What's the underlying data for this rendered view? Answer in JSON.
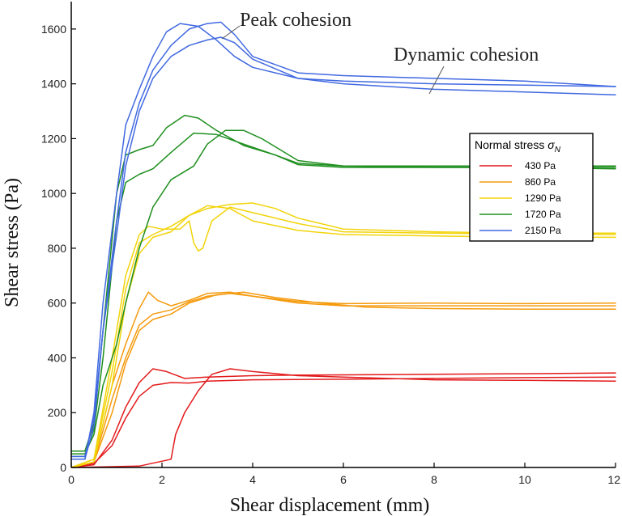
{
  "chart_data": {
    "type": "line",
    "xlabel": "Shear displacement (mm)",
    "ylabel": "Shear stress (Pa)",
    "xlim": [
      0,
      12
    ],
    "ylim": [
      0,
      1700
    ],
    "xticks": [
      "0",
      "2",
      "4",
      "6",
      "8",
      "10",
      "12"
    ],
    "yticks": [
      "0",
      "200",
      "400",
      "600",
      "800",
      "1000",
      "1200",
      "1400",
      "1600"
    ],
    "grid": false,
    "legend": {
      "title_main": "Normal stress ",
      "title_symbol": "σ",
      "title_sub": "N",
      "placement": "right",
      "entries": [
        {
          "label": "430 Pa",
          "color": "#e31a1c"
        },
        {
          "label": "860 Pa",
          "color": "#f59a0c"
        },
        {
          "label": "1290 Pa",
          "color": "#f2d40a"
        },
        {
          "label": "1720 Pa",
          "color": "#1f8f1f"
        },
        {
          "label": "2150 Pa",
          "color": "#4169e1"
        }
      ]
    },
    "annotations": [
      {
        "text": "Peak cohesion",
        "x": 3.2,
        "y": 1625
      },
      {
        "text": "Dynamic cohesion",
        "x": 7.8,
        "y": 1400
      }
    ],
    "series": [
      {
        "group": "430 Pa",
        "color": "#e31a1c",
        "x": [
          0,
          0.5,
          0.9,
          1.2,
          1.5,
          1.8,
          2.1,
          2.5,
          3,
          4,
          5,
          6,
          8,
          10,
          12
        ],
        "y": [
          0,
          10,
          100,
          220,
          310,
          360,
          350,
          325,
          330,
          335,
          337,
          338,
          340,
          342,
          345
        ]
      },
      {
        "group": "430 Pa",
        "color": "#e31a1c",
        "x": [
          0,
          0.5,
          0.9,
          1.2,
          1.5,
          1.8,
          2.2,
          2.6,
          3,
          4,
          6,
          8,
          10,
          12
        ],
        "y": [
          0,
          15,
          80,
          180,
          260,
          300,
          310,
          308,
          315,
          320,
          322,
          325,
          328,
          330
        ]
      },
      {
        "group": "430 Pa",
        "color": "#e31a1c",
        "x": [
          0,
          1.5,
          2.2,
          2.3,
          2.5,
          2.8,
          3.1,
          3.5,
          4,
          5,
          6,
          8,
          10,
          12
        ],
        "y": [
          0,
          5,
          30,
          120,
          200,
          280,
          340,
          360,
          350,
          335,
          330,
          320,
          318,
          315
        ]
      },
      {
        "group": "860 Pa",
        "color": "#f59a0c",
        "x": [
          0,
          0.5,
          0.9,
          1.2,
          1.5,
          1.7,
          1.9,
          2.2,
          2.6,
          3,
          3.5,
          4,
          5,
          6,
          8,
          10,
          12
        ],
        "y": [
          0,
          20,
          300,
          450,
          580,
          640,
          610,
          590,
          610,
          635,
          640,
          625,
          605,
          598,
          600,
          598,
          600
        ]
      },
      {
        "group": "860 Pa",
        "color": "#f59a0c",
        "x": [
          0,
          0.5,
          0.9,
          1.2,
          1.5,
          1.8,
          2.2,
          2.6,
          3,
          3.5,
          4,
          5,
          6,
          8,
          10,
          12
        ],
        "y": [
          0,
          20,
          250,
          400,
          520,
          560,
          575,
          605,
          625,
          635,
          625,
          600,
          590,
          590,
          590,
          590
        ]
      },
      {
        "group": "860 Pa",
        "color": "#f59a0c",
        "x": [
          0,
          0.5,
          0.9,
          1.2,
          1.5,
          1.8,
          2.2,
          2.6,
          3.2,
          3.8,
          4.5,
          5.5,
          6.5,
          8,
          10,
          12
        ],
        "y": [
          0,
          20,
          200,
          380,
          500,
          540,
          560,
          600,
          630,
          640,
          620,
          600,
          585,
          580,
          578,
          578
        ]
      },
      {
        "group": "1290 Pa",
        "color": "#f2d40a",
        "x": [
          0,
          0.5,
          0.9,
          1.2,
          1.5,
          1.7,
          2,
          2.4,
          2.6,
          2.7,
          2.8,
          2.9,
          3.1,
          3.5,
          4,
          5,
          6,
          8,
          10,
          12
        ],
        "y": [
          0,
          30,
          400,
          700,
          850,
          880,
          870,
          870,
          900,
          820,
          790,
          800,
          900,
          950,
          930,
          890,
          860,
          855,
          852,
          850
        ]
      },
      {
        "group": "1290 Pa",
        "color": "#f2d40a",
        "x": [
          0,
          0.5,
          0.9,
          1.2,
          1.5,
          1.8,
          2.2,
          2.6,
          3,
          3.5,
          4,
          4.5,
          5,
          6,
          8,
          10,
          12
        ],
        "y": [
          0,
          30,
          350,
          650,
          820,
          850,
          880,
          920,
          945,
          960,
          965,
          945,
          910,
          870,
          860,
          855,
          855
        ]
      },
      {
        "group": "1290 Pa",
        "color": "#f2d40a",
        "x": [
          0,
          0.5,
          0.9,
          1.2,
          1.5,
          1.8,
          2.2,
          2.6,
          3,
          3.5,
          4,
          5,
          6,
          8,
          10,
          12
        ],
        "y": [
          0,
          20,
          300,
          600,
          780,
          840,
          860,
          920,
          955,
          945,
          900,
          865,
          850,
          845,
          840,
          840
        ]
      },
      {
        "group": "1720 Pa",
        "color": "#1f8f1f",
        "x": [
          0,
          0.3,
          0.5,
          0.7,
          1,
          1.2,
          1.5,
          1.8,
          2.1,
          2.5,
          2.8,
          3.2,
          3.8,
          4.5,
          5,
          6,
          8,
          10,
          12
        ],
        "y": [
          60,
          60,
          160,
          500,
          1000,
          1140,
          1160,
          1175,
          1240,
          1285,
          1275,
          1230,
          1175,
          1140,
          1110,
          1100,
          1095,
          1095,
          1090
        ]
      },
      {
        "group": "1720 Pa",
        "color": "#1f8f1f",
        "x": [
          0,
          0.3,
          0.5,
          0.7,
          1,
          1.2,
          1.5,
          1.8,
          2.2,
          2.7,
          3.2,
          3.8,
          4.5,
          5,
          6,
          8,
          10,
          12
        ],
        "y": [
          40,
          40,
          140,
          400,
          900,
          1040,
          1070,
          1090,
          1150,
          1220,
          1215,
          1180,
          1140,
          1105,
          1095,
          1095,
          1095,
          1095
        ]
      },
      {
        "group": "1720 Pa",
        "color": "#1f8f1f",
        "x": [
          0,
          0.3,
          0.5,
          0.7,
          1,
          1.2,
          1.5,
          1.8,
          2.2,
          2.7,
          3,
          3.4,
          3.8,
          4.2,
          5,
          6,
          8,
          10,
          12
        ],
        "y": [
          50,
          50,
          120,
          300,
          450,
          600,
          800,
          950,
          1050,
          1100,
          1180,
          1230,
          1230,
          1200,
          1120,
          1100,
          1100,
          1100,
          1100
        ]
      },
      {
        "group": "2150 Pa",
        "color": "#4169e1",
        "x": [
          0,
          0.3,
          0.5,
          0.7,
          1,
          1.2,
          1.5,
          1.8,
          2.1,
          2.4,
          2.8,
          3.2,
          3.6,
          4,
          5,
          6,
          8,
          10,
          12
        ],
        "y": [
          30,
          30,
          200,
          600,
          1000,
          1250,
          1380,
          1500,
          1590,
          1620,
          1610,
          1560,
          1500,
          1460,
          1420,
          1410,
          1400,
          1395,
          1390
        ]
      },
      {
        "group": "2150 Pa",
        "color": "#4169e1",
        "x": [
          0,
          0.3,
          0.5,
          0.7,
          1,
          1.2,
          1.5,
          1.8,
          2.2,
          2.6,
          3,
          3.3,
          3.6,
          4,
          5,
          6,
          8,
          10,
          12
        ],
        "y": [
          30,
          30,
          150,
          500,
          900,
          1150,
          1330,
          1450,
          1540,
          1600,
          1620,
          1625,
          1580,
          1500,
          1440,
          1430,
          1420,
          1410,
          1390
        ]
      },
      {
        "group": "2150 Pa",
        "color": "#4169e1",
        "x": [
          0,
          0.3,
          0.5,
          0.7,
          1,
          1.2,
          1.5,
          1.8,
          2.2,
          2.6,
          3,
          3.3,
          3.6,
          4,
          5,
          6,
          8,
          10,
          12
        ],
        "y": [
          40,
          40,
          180,
          500,
          850,
          1100,
          1300,
          1420,
          1500,
          1540,
          1560,
          1570,
          1550,
          1490,
          1420,
          1400,
          1380,
          1370,
          1360
        ]
      }
    ]
  }
}
